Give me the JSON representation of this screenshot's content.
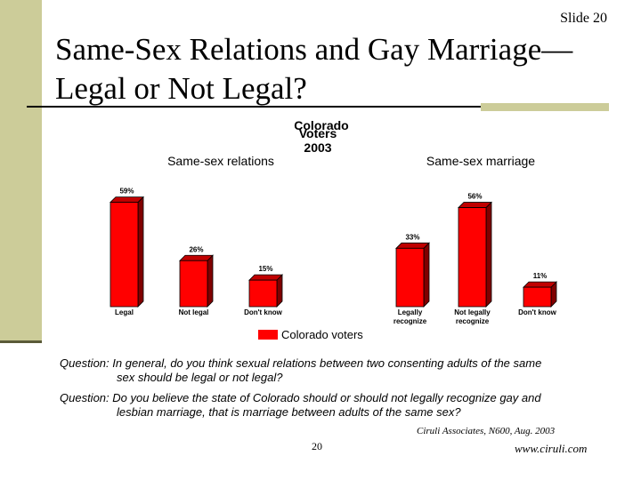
{
  "slide": {
    "number_label": "Slide 20",
    "title_line1": "Same-Sex Relations and Gay Marriage—",
    "title_line2": "Legal or Not Legal?",
    "page_number": "20",
    "source": "Ciruli Associates, N600, Aug. 2003",
    "website": "www.ciruli.com"
  },
  "colors": {
    "sidebar": "#cccc99",
    "bar": "#ff0000"
  },
  "questions": [
    {
      "prefix": "Question:",
      "line1": "In general, do you think sexual relations between two consenting adults of the same",
      "line2": "sex should be legal or not legal?"
    },
    {
      "prefix": "Question:",
      "line1": "Do you believe the state of Colorado should or should not legally recognize gay and",
      "line2": "lesbian marriage, that is marriage between adults of the same sex?"
    }
  ],
  "chart_data": [
    {
      "type": "bar",
      "title": "Same-sex relations",
      "header_overlap": [
        "Colorado",
        "Voters",
        "2003"
      ],
      "categories": [
        "Legal",
        "Not legal",
        "Don't know"
      ],
      "values": [
        59,
        26,
        15
      ],
      "data_labels": [
        "59%",
        "26%",
        "15%"
      ],
      "ylim": [
        0,
        70
      ],
      "legend": "Colorado voters",
      "grid": false
    },
    {
      "type": "bar",
      "title": "Same-sex marriage",
      "categories": [
        [
          "Legally",
          "recognize"
        ],
        [
          "Not legally",
          "recognize"
        ],
        [
          "Don't know"
        ]
      ],
      "values": [
        33,
        56,
        11
      ],
      "data_labels": [
        "33%",
        "56%",
        "11%"
      ],
      "ylim": [
        0,
        70
      ],
      "legend": "Colorado voters",
      "grid": false
    }
  ]
}
